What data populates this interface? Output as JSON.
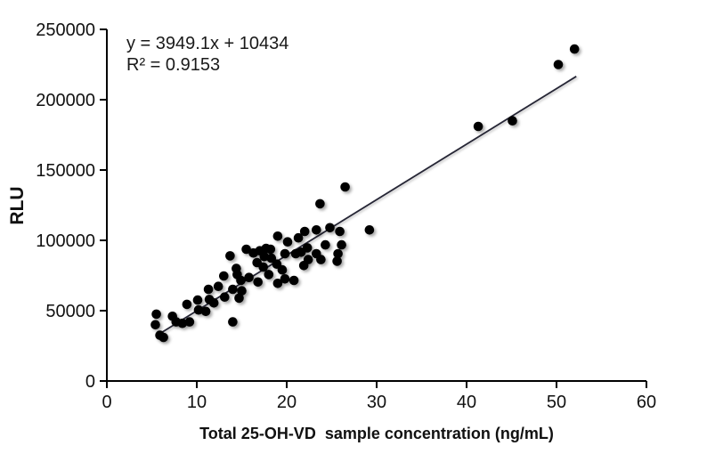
{
  "chart_data": {
    "type": "scatter",
    "title": "",
    "xlabel": "Total 25-OH-VD  sample concentration (ng/mL)",
    "ylabel": "RLU",
    "xlim": [
      0,
      60
    ],
    "ylim": [
      0,
      250000
    ],
    "xticks": [
      0,
      10,
      20,
      30,
      40,
      50,
      60
    ],
    "yticks": [
      0,
      50000,
      100000,
      150000,
      200000,
      250000
    ],
    "grid": false,
    "legend_position": "none",
    "marker_color": "#000000",
    "axis_color": "#000000",
    "line_color": "#262636",
    "annotation": {
      "equation": "y = 3949.1x + 10434",
      "r_squared": "R² = 0.9153"
    },
    "trendline": {
      "slope": 3949.1,
      "intercept": 10434,
      "x_start": 5.45,
      "x_end": 52.2
    },
    "points": [
      [
        5.5,
        47500
      ],
      [
        5.4,
        40000
      ],
      [
        5.9,
        32500
      ],
      [
        6.3,
        31000
      ],
      [
        7.3,
        46000
      ],
      [
        7.7,
        42000
      ],
      [
        8.4,
        41000
      ],
      [
        9.2,
        42000
      ],
      [
        8.9,
        54500
      ],
      [
        10.1,
        57500
      ],
      [
        10.2,
        50500
      ],
      [
        11.0,
        49500
      ],
      [
        11.4,
        58000
      ],
      [
        11.9,
        55500
      ],
      [
        13.1,
        59700
      ],
      [
        11.3,
        65200
      ],
      [
        12.4,
        67300
      ],
      [
        13.0,
        74700
      ],
      [
        14.0,
        42000
      ],
      [
        14.0,
        65200
      ],
      [
        14.5,
        75700
      ],
      [
        14.7,
        58900
      ],
      [
        13.7,
        89000
      ],
      [
        14.4,
        80000
      ],
      [
        14.9,
        71500
      ],
      [
        15.0,
        64100
      ],
      [
        15.5,
        93700
      ],
      [
        15.8,
        73600
      ],
      [
        16.8,
        70400
      ],
      [
        16.7,
        84200
      ],
      [
        17.0,
        92600
      ],
      [
        17.7,
        94300
      ],
      [
        18.2,
        93700
      ],
      [
        17.5,
        88400
      ],
      [
        18.3,
        87300
      ],
      [
        17.4,
        81000
      ],
      [
        18.0,
        75700
      ],
      [
        19.0,
        69400
      ],
      [
        19.8,
        72600
      ],
      [
        19.5,
        79000
      ],
      [
        18.9,
        83100
      ],
      [
        19.0,
        103000
      ],
      [
        20.1,
        98900
      ],
      [
        21.3,
        101800
      ],
      [
        22.0,
        106300
      ],
      [
        23.3,
        107400
      ],
      [
        24.8,
        109000
      ],
      [
        25.9,
        106300
      ],
      [
        29.2,
        107400
      ],
      [
        21.6,
        91600
      ],
      [
        22.3,
        94700
      ],
      [
        23.3,
        90500
      ],
      [
        21.9,
        82100
      ],
      [
        22.4,
        86300
      ],
      [
        23.8,
        86300
      ],
      [
        25.6,
        85200
      ],
      [
        25.7,
        90500
      ],
      [
        24.3,
        96800
      ],
      [
        26.1,
        96800
      ],
      [
        19.8,
        90500
      ],
      [
        21.0,
        90500
      ],
      [
        16.3,
        91000
      ],
      [
        20.8,
        71500
      ],
      [
        23.7,
        126000
      ],
      [
        26.5,
        138000
      ],
      [
        41.3,
        181000
      ],
      [
        45.1,
        185000
      ],
      [
        50.2,
        225000
      ],
      [
        52.0,
        236000
      ]
    ]
  }
}
